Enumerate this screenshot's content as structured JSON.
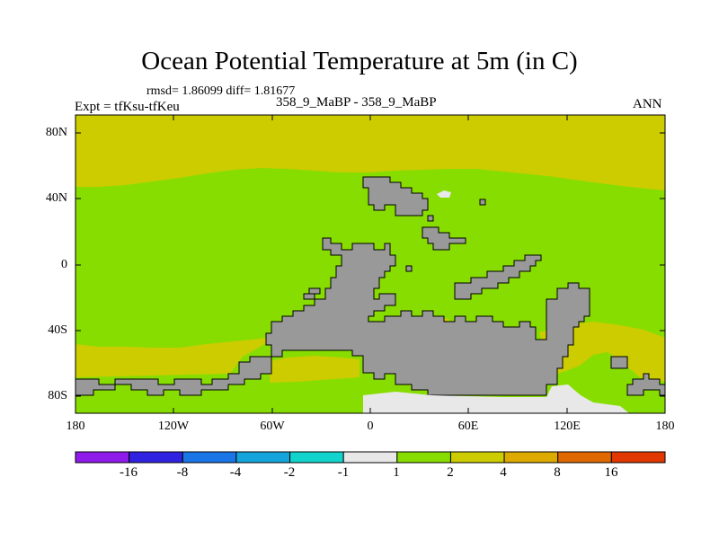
{
  "title": "Ocean Potential Temperature at 5m (in C)",
  "stats": "rmsd= 1.86099 diff= 1.81677",
  "expt": "Expt = tfKsu-tfKeu",
  "center_label": "358_9_MaBP - 358_9_MaBP",
  "season": "ANN",
  "y_ticks": [
    "80N",
    "40N",
    "0",
    "40S",
    "80S"
  ],
  "x_ticks": [
    "180",
    "120W",
    "60W",
    "0",
    "60E",
    "120E",
    "180"
  ],
  "colorbar": {
    "labels": [
      "-16",
      "-8",
      "-4",
      "-2",
      "-1",
      "1",
      "2",
      "4",
      "8",
      "16"
    ],
    "colors": [
      "#8f1bea",
      "#2f22e0",
      "#1a75e6",
      "#16a4dc",
      "#12d4cc",
      "#e8e8e8",
      "#88dd00",
      "#cccc00",
      "#ddaa00",
      "#e06800",
      "#e03800"
    ]
  },
  "map_colors": {
    "ocean_2_4": "#88dd00",
    "ocean_4_8": "#cccc00",
    "near_zero": "#e8e8e8",
    "land": "#999999"
  }
}
